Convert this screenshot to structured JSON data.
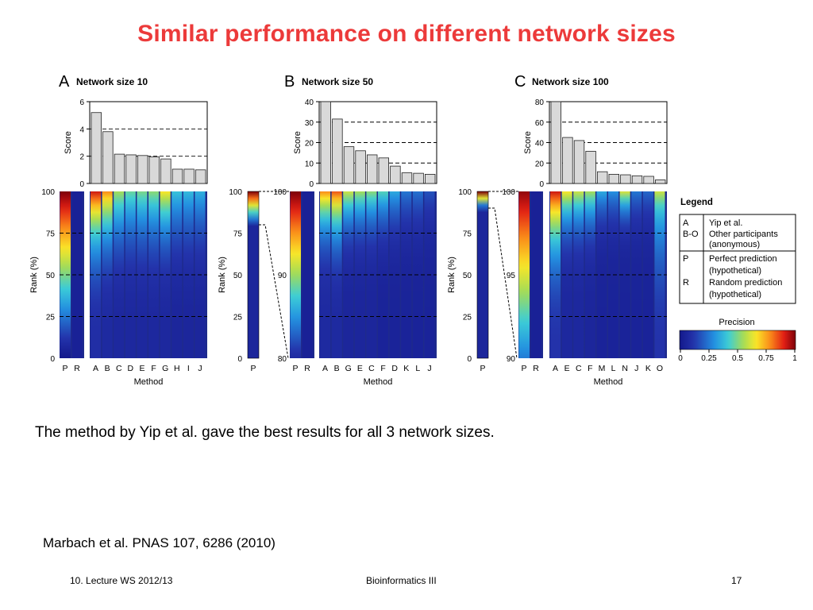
{
  "slide": {
    "title": "Similar performance on different network sizes",
    "caption": "The method by Yip et al. gave the best results for all 3 network sizes.",
    "reference": "Marbach et al. PNAS 107, 6286 (2010)",
    "footer_left": "10. Lecture WS 2012/13",
    "footer_center": "Bioinformatics III",
    "footer_right": "17"
  },
  "chart_data": [
    {
      "type": "bar",
      "panel": "A",
      "title": "Network size 10",
      "ylabel": "Score",
      "ylim": [
        0,
        6
      ],
      "yticks": [
        0,
        2,
        4,
        6
      ],
      "dashed_lines": [
        2,
        4
      ],
      "categories": [
        "A",
        "B",
        "C",
        "D",
        "E",
        "F",
        "G",
        "H",
        "I",
        "J"
      ],
      "values": [
        5.2,
        3.8,
        2.15,
        2.1,
        2.05,
        1.95,
        1.8,
        1.05,
        1.05,
        1.0
      ]
    },
    {
      "type": "bar",
      "panel": "B",
      "title": "Network size 50",
      "ylabel": "Score",
      "ylim": [
        0,
        40
      ],
      "yticks": [
        0,
        10,
        20,
        30,
        40
      ],
      "dashed_lines": [
        10,
        20,
        30
      ],
      "categories": [
        "A",
        "B",
        "G",
        "E",
        "C",
        "F",
        "D",
        "K",
        "L",
        "J"
      ],
      "values": [
        40,
        31.5,
        18,
        16,
        14,
        12.5,
        8.5,
        5.2,
        5.0,
        4.5
      ]
    },
    {
      "type": "bar",
      "panel": "C",
      "title": "Network size 100",
      "ylabel": "Score",
      "ylim": [
        0,
        80
      ],
      "yticks": [
        0,
        20,
        40,
        60,
        80
      ],
      "dashed_lines": [
        20,
        40,
        60
      ],
      "categories": [
        "A",
        "E",
        "C",
        "F",
        "M",
        "L",
        "N",
        "J",
        "K",
        "O"
      ],
      "values": [
        80,
        45,
        42,
        31.5,
        11.5,
        9,
        8.5,
        7.5,
        7,
        3.5
      ]
    },
    {
      "type": "heatmap",
      "panel": "A",
      "ylabel": "Rank (%)",
      "xlabel": "Method",
      "yticks": [
        0,
        25,
        50,
        75,
        100
      ],
      "dashed_lines": [
        25,
        50,
        75
      ],
      "reference_columns": [
        "P",
        "R"
      ],
      "columns": [
        "A",
        "B",
        "C",
        "D",
        "E",
        "F",
        "G",
        "H",
        "I",
        "J"
      ]
    },
    {
      "type": "heatmap",
      "panel": "B",
      "ylabel": "Rank (%)",
      "xlabel": "Method",
      "overview_yticks": [
        0,
        25,
        50,
        75,
        100
      ],
      "overview_columns": [
        "P"
      ],
      "zoom_yticks": [
        80,
        90,
        100
      ],
      "zoom_columns": [
        "P",
        "R"
      ],
      "dashed_lines": [
        25,
        50,
        75
      ],
      "columns": [
        "A",
        "B",
        "G",
        "E",
        "C",
        "F",
        "D",
        "K",
        "L",
        "J"
      ]
    },
    {
      "type": "heatmap",
      "panel": "C",
      "ylabel": "Rank (%)",
      "xlabel": "Method",
      "overview_yticks": [
        0,
        25,
        50,
        75,
        100
      ],
      "overview_columns": [
        "P"
      ],
      "zoom_yticks": [
        90,
        95,
        100
      ],
      "zoom_columns": [
        "P",
        "R"
      ],
      "dashed_lines": [
        25,
        50,
        75
      ],
      "columns": [
        "A",
        "E",
        "C",
        "F",
        "M",
        "L",
        "N",
        "J",
        "K",
        "O"
      ]
    }
  ],
  "legend": {
    "title": "Legend",
    "rows": [
      {
        "key": "A",
        "desc": "Yip et al."
      },
      {
        "key": "B-O",
        "desc": "Other participants (anonymous)"
      },
      {
        "key": "P",
        "desc": "Perfect prediction (hypothetical)"
      },
      {
        "key": "R",
        "desc": "Random prediction (hypothetical)"
      }
    ],
    "colorbar_title": "Precision",
    "colorbar_ticks": [
      "0",
      "0.25",
      "0.5",
      "0.75",
      "1"
    ]
  }
}
